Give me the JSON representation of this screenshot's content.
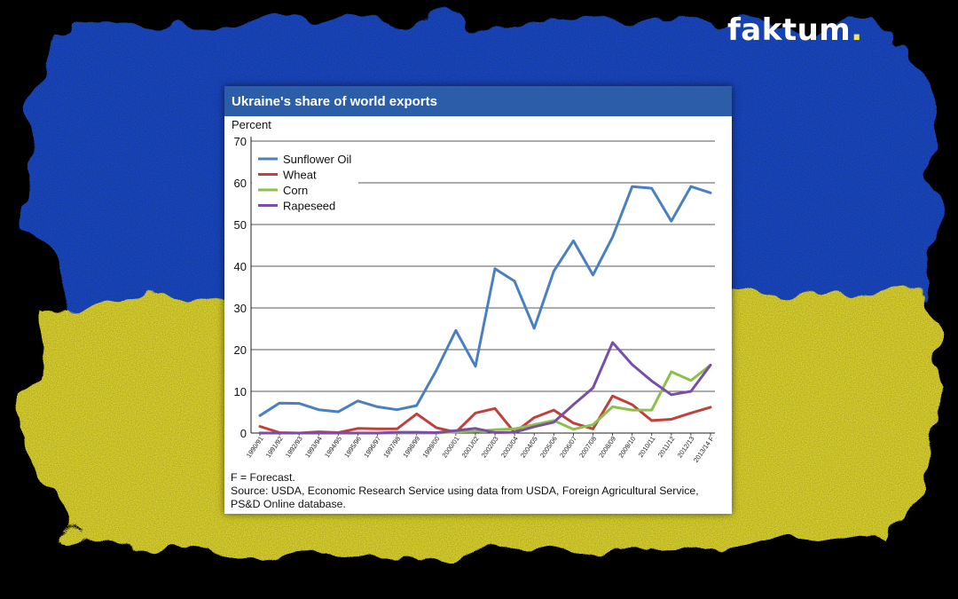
{
  "brand": {
    "name": "faktum",
    "dot": "."
  },
  "colors": {
    "flag_blue": "#1f4fd6",
    "flag_yellow": "#f2e832",
    "header_bg": "#2b5da8"
  },
  "card": {
    "title": "Ukraine's share of world exports",
    "footnote": "F = Forecast.",
    "source": "Source: USDA, Economic Research Service using data from USDA, Foreign Agricultural Service,",
    "source_2": "PS&D Online database."
  },
  "chart_data": {
    "type": "line",
    "title": "Ukraine's share of world exports",
    "ylabel": "Percent",
    "xlabel": "",
    "ylim": [
      0,
      70
    ],
    "yticks": [
      0,
      10,
      20,
      30,
      40,
      50,
      60,
      70
    ],
    "grid": true,
    "legend_position": "top-left",
    "categories": [
      "1990/91",
      "1991/92",
      "1992/93",
      "1993/94",
      "1994/95",
      "1995/96",
      "1996/97",
      "1997/98",
      "1998/99",
      "1999/00",
      "2000/01",
      "2001/02",
      "2002/03",
      "2003/04",
      "2004/05",
      "2005/06",
      "2006/07",
      "2007/08",
      "2008/09",
      "2009/10",
      "2010/11",
      "2011/12",
      "2012/13",
      "2013/14 F"
    ],
    "series": [
      {
        "name": "Sunflower Oil",
        "color": "#4a80c0",
        "values": [
          4.2,
          7.2,
          7.1,
          5.6,
          5.1,
          7.7,
          6.3,
          5.6,
          6.6,
          15.0,
          24.6,
          16.0,
          39.4,
          36.4,
          25.1,
          38.8,
          46.1,
          37.9,
          47.0,
          59.1,
          58.7,
          50.8,
          59.1,
          57.6
        ]
      },
      {
        "name": "Wheat",
        "color": "#c0403c",
        "values": [
          1.6,
          0.1,
          0.0,
          0.3,
          0.1,
          1.1,
          1.0,
          1.0,
          4.6,
          1.3,
          0.2,
          4.8,
          5.9,
          0.1,
          3.7,
          5.5,
          2.4,
          1.0,
          8.9,
          6.8,
          3.0,
          3.3,
          4.8,
          6.2
        ]
      },
      {
        "name": "Corn",
        "color": "#8dbf4c",
        "values": [
          0.0,
          0.0,
          0.0,
          0.0,
          0.0,
          0.0,
          0.0,
          0.0,
          0.0,
          0.0,
          0.3,
          0.4,
          0.8,
          1.0,
          2.0,
          3.0,
          0.9,
          2.0,
          6.3,
          5.5,
          5.5,
          14.7,
          12.6,
          16.3
        ]
      },
      {
        "name": "Rapeseed",
        "color": "#7a4ea6",
        "values": [
          0.0,
          0.0,
          0.0,
          0.0,
          0.0,
          0.0,
          0.0,
          0.2,
          0.2,
          0.1,
          0.6,
          1.1,
          0.1,
          0.2,
          1.5,
          2.6,
          6.8,
          10.8,
          21.7,
          16.4,
          12.5,
          9.2,
          10.0,
          16.3
        ]
      }
    ]
  }
}
